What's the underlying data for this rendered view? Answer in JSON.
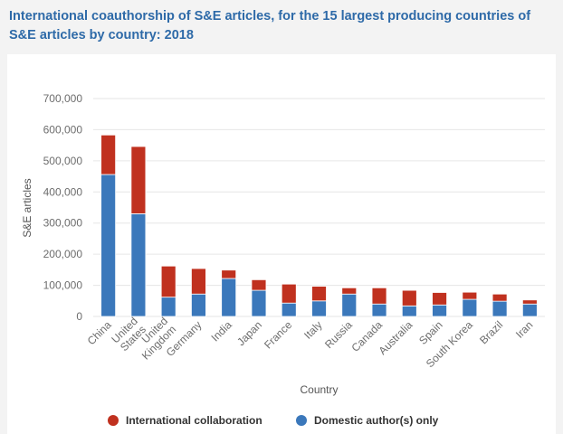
{
  "title": "International coauthorship of S&E articles, for the 15 largest producing countries of S&E articles by country: 2018",
  "colors": {
    "international": "#c0311f",
    "domestic": "#3b78bb",
    "grid": "#e6e6e6",
    "title": "#2e6aa8"
  },
  "chart_data": {
    "type": "bar",
    "stacked": true,
    "xlabel": "Country",
    "ylabel": "S&E articles",
    "ylim": [
      0,
      700000
    ],
    "yticks": [
      "0",
      "100,000",
      "200,000",
      "300,000",
      "400,000",
      "500,000",
      "600,000",
      "700,000"
    ],
    "ytick_values": [
      0,
      100000,
      200000,
      300000,
      400000,
      500000,
      600000,
      700000
    ],
    "categories": [
      "China",
      "United States",
      "United Kingdom",
      "Germany",
      "India",
      "Japan",
      "France",
      "Italy",
      "Russia",
      "Canada",
      "Australia",
      "Spain",
      "South Korea",
      "Brazil",
      "Iran"
    ],
    "category_label_lines": [
      [
        "China"
      ],
      [
        "United",
        "States"
      ],
      [
        "United",
        "Kingdom"
      ],
      [
        "Germany"
      ],
      [
        "India"
      ],
      [
        "Japan"
      ],
      [
        "France"
      ],
      [
        "Italy"
      ],
      [
        "Russia"
      ],
      [
        "Canada"
      ],
      [
        "Australia"
      ],
      [
        "Spain"
      ],
      [
        "South Korea"
      ],
      [
        "Brazil"
      ],
      [
        "Iran"
      ]
    ],
    "series": [
      {
        "name": "Domestic author(s) only",
        "color": "#3b78bb",
        "values": [
          456000,
          330000,
          62000,
          72000,
          122000,
          84000,
          43000,
          50000,
          72000,
          40000,
          34000,
          37000,
          55000,
          49000,
          40000
        ]
      },
      {
        "name": "International collaboration",
        "color": "#c0311f",
        "values": [
          127000,
          216000,
          100000,
          82000,
          27000,
          34000,
          61000,
          47000,
          20000,
          52000,
          50000,
          40000,
          23000,
          23000,
          13000
        ]
      }
    ],
    "legend": {
      "position": "bottom",
      "items": [
        {
          "label": "International collaboration",
          "color": "#c0311f"
        },
        {
          "label": "Domestic author(s) only",
          "color": "#3b78bb"
        }
      ]
    },
    "grid": true
  }
}
